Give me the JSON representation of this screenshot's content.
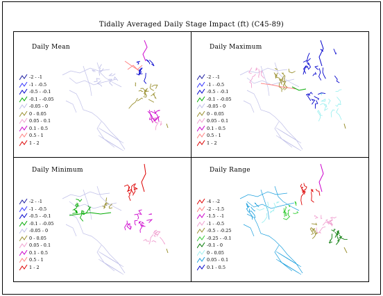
{
  "title": "Tidally Averaged Daily Stage Impact (ft) (C45-89)",
  "panels": [
    {
      "title": "Daily Mean",
      "legend": [
        {
          "label": "-2 - -1",
          "color": "#1a1aa0"
        },
        {
          "label": "-1 - -0.5",
          "color": "#3333ff"
        },
        {
          "label": "-0.5 - -0.1",
          "color": "#0000cc"
        },
        {
          "label": "-0.1 - -0.05",
          "color": "#00aa00"
        },
        {
          "label": "-0.05 - 0",
          "color": "#bfbfe8"
        },
        {
          "label": "0 - 0.05",
          "color": "#998f2e"
        },
        {
          "label": "0.05 - 0.1",
          "color": "#f0a0d0"
        },
        {
          "label": "0.1 - 0.5",
          "color": "#cc00cc"
        },
        {
          "label": "0.5 - 1",
          "color": "#ff8080"
        },
        {
          "label": "1 - 2",
          "color": "#dd0000"
        }
      ]
    },
    {
      "title": "Daily Maximum",
      "legend": [
        {
          "label": "-2 - -1",
          "color": "#1a1aa0"
        },
        {
          "label": "-1 - -0.5",
          "color": "#3333ff"
        },
        {
          "label": "-0.5 - -0.1",
          "color": "#0000cc"
        },
        {
          "label": "-0.1 - -0.05",
          "color": "#00aa00"
        },
        {
          "label": "-0.05 - 0",
          "color": "#bfbfe8"
        },
        {
          "label": "0 - 0.05",
          "color": "#998f2e"
        },
        {
          "label": "0.05 - 0.1",
          "color": "#f0a0d0"
        },
        {
          "label": "0.1 - 0.5",
          "color": "#cc00cc"
        },
        {
          "label": "0.5 - 1",
          "color": "#ff8080"
        },
        {
          "label": "1 - 2",
          "color": "#dd0000"
        }
      ]
    },
    {
      "title": "Daily Minimum",
      "legend": [
        {
          "label": "-2 - -1",
          "color": "#1a1aa0"
        },
        {
          "label": "-1 - -0.5",
          "color": "#3333ff"
        },
        {
          "label": "-0.5 - -0.1",
          "color": "#0000cc"
        },
        {
          "label": "-0.1 - -0.05",
          "color": "#00aa00"
        },
        {
          "label": "-0.05 - 0",
          "color": "#bfbfe8"
        },
        {
          "label": "0 - 0.05",
          "color": "#998f2e"
        },
        {
          "label": "0.05 - 0.1",
          "color": "#f0a0d0"
        },
        {
          "label": "0.1 - 0.5",
          "color": "#cc00cc"
        },
        {
          "label": "0.5 - 1",
          "color": "#ff8080"
        },
        {
          "label": "1 - 2",
          "color": "#dd0000"
        }
      ]
    },
    {
      "title": "Daily Range",
      "legend": [
        {
          "label": "-4 - -2",
          "color": "#dd0000"
        },
        {
          "label": "-2 - -1.5",
          "color": "#ff8080"
        },
        {
          "label": "-1.5 - -1",
          "color": "#cc00cc"
        },
        {
          "label": "-1 - -0.5",
          "color": "#f0a0d0"
        },
        {
          "label": "-0.5 - -0.25",
          "color": "#998f2e"
        },
        {
          "label": "-0.25 - -0.1",
          "color": "#33cc33"
        },
        {
          "label": "-0.1 - 0",
          "color": "#007700"
        },
        {
          "label": "0 - 0.05",
          "color": "#9ff0f0"
        },
        {
          "label": "0.05 - 0.1",
          "color": "#1a9fdd"
        },
        {
          "label": "0.1 - 0.5",
          "color": "#0000cc"
        }
      ]
    }
  ]
}
